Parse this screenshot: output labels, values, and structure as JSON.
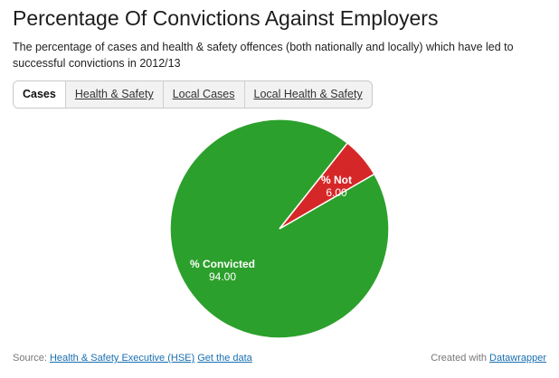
{
  "header": {
    "title": "Percentage Of Convictions Against Employers",
    "subtitle": "The percentage of cases and health & safety offences (both nationally and locally) which have led to successful convictions in 2012/13"
  },
  "tabs": [
    {
      "label": "Cases",
      "active": true
    },
    {
      "label": "Health & Safety",
      "active": false
    },
    {
      "label": "Local Cases",
      "active": false
    },
    {
      "label": "Local Health & Safety",
      "active": false
    }
  ],
  "chart_data": {
    "type": "pie",
    "slices": [
      {
        "label": "% Convicted",
        "value": 94.0,
        "value_text": "94.00",
        "color": "#2ca02c"
      },
      {
        "label": "% Not",
        "value": 6.0,
        "value_text": "6.00",
        "color": "#d62728"
      }
    ]
  },
  "footer": {
    "source_prefix": "Source:",
    "source_link": "Health & Safety Executive (HSE)",
    "data_link": "Get the data",
    "credit_prefix": "Created with",
    "credit_link": "Datawrapper"
  }
}
